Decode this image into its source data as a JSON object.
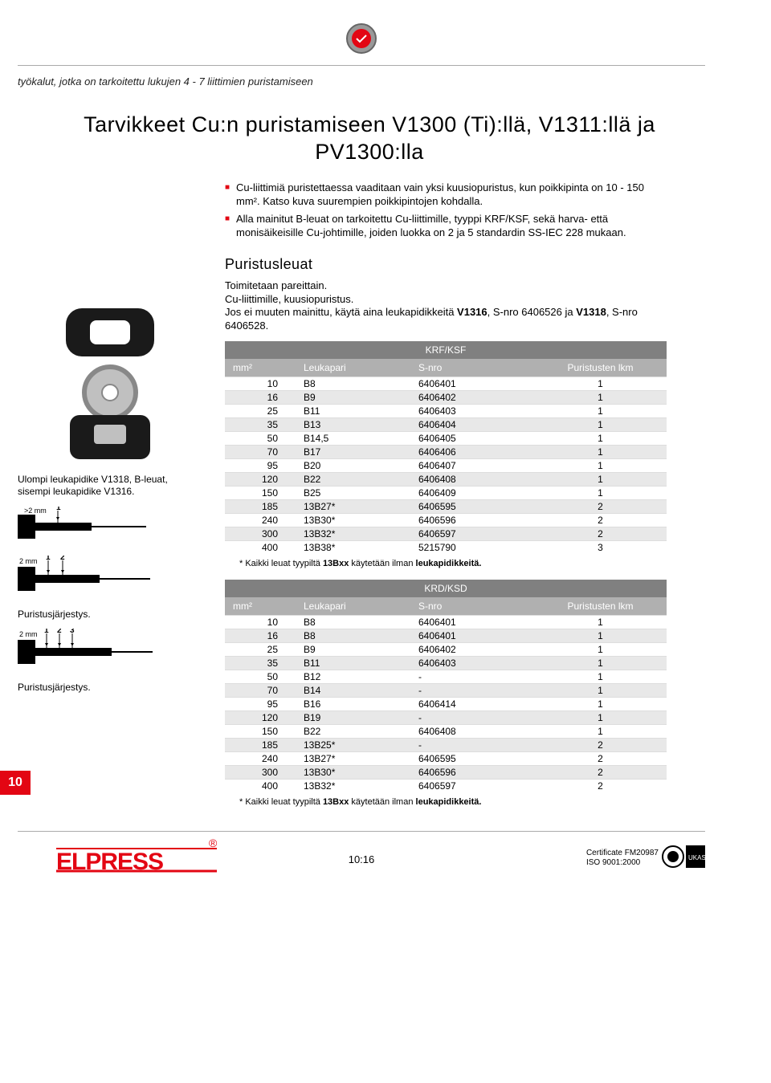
{
  "breadcrumb": "työkalut, jotka on tarkoitettu lukujen 4 - 7 liittimien puristamiseen",
  "title": "Tarvikkeet Cu:n puristamiseen V1300 (Ti):llä, V1311:llä ja PV1300:lla",
  "intro_items": [
    "Cu-liittimiä puristettaessa vaaditaan vain yksi kuusiopuristus, kun poikkipinta on 10 - 150 mm². Katso kuva suurempien poikkipintojen kohdalla.",
    "Alla mainitut B-leuat on tarkoitettu Cu-liittimille, tyyppi KRF/KSF, sekä harva- että monisäikeisille Cu-johtimille, joiden luokka on 2 ja 5 standardin SS-IEC 228 mukaan."
  ],
  "section_title": "Puristusleuat",
  "section_text": [
    "Toimitetaan pareittain.",
    "Cu-liittimille, kuusiopuristus.",
    "Jos ei muuten mainittu, käytä aina leukapidikkeitä V1316, S-nro 6406526 ja V1318, S-nro 6406528."
  ],
  "left_caption1": "Ulompi leukapidike V1318, B-leuat, sisempi leukapidike V1316.",
  "left_caption2": "Puristusjärjestys.",
  "left_caption3": "Puristusjärjestys.",
  "table1": {
    "band": "KRF/KSF",
    "headers": [
      "mm²",
      "Leukapari",
      "S-nro",
      "Puristusten lkm"
    ],
    "rows": [
      [
        "10",
        "B8",
        "6406401",
        "1"
      ],
      [
        "16",
        "B9",
        "6406402",
        "1"
      ],
      [
        "25",
        "B11",
        "6406403",
        "1"
      ],
      [
        "35",
        "B13",
        "6406404",
        "1"
      ],
      [
        "50",
        "B14,5",
        "6406405",
        "1"
      ],
      [
        "70",
        "B17",
        "6406406",
        "1"
      ],
      [
        "95",
        "B20",
        "6406407",
        "1"
      ],
      [
        "120",
        "B22",
        "6406408",
        "1"
      ],
      [
        "150",
        "B25",
        "6406409",
        "1"
      ],
      [
        "185",
        "13B27*",
        "6406595",
        "2"
      ],
      [
        "240",
        "13B30*",
        "6406596",
        "2"
      ],
      [
        "300",
        "13B32*",
        "6406597",
        "2"
      ],
      [
        "400",
        "13B38*",
        "5215790",
        "3"
      ]
    ],
    "footnote": "* Kaikki leuat tyypiltä 13Bxx käytetään ilman leukapidikkeitä."
  },
  "table2": {
    "band": "KRD/KSD",
    "headers": [
      "mm²",
      "Leukapari",
      "S-nro",
      "Puristusten lkm"
    ],
    "rows": [
      [
        "10",
        "B8",
        "6406401",
        "1"
      ],
      [
        "16",
        "B8",
        "6406401",
        "1"
      ],
      [
        "25",
        "B9",
        "6406402",
        "1"
      ],
      [
        "35",
        "B11",
        "6406403",
        "1"
      ],
      [
        "50",
        "B12",
        "-",
        "1"
      ],
      [
        "70",
        "B14",
        "-",
        "1"
      ],
      [
        "95",
        "B16",
        "6406414",
        "1"
      ],
      [
        "120",
        "B19",
        "-",
        "1"
      ],
      [
        "150",
        "B22",
        "6406408",
        "1"
      ],
      [
        "185",
        "13B25*",
        "-",
        "2"
      ],
      [
        "240",
        "13B27*",
        "6406595",
        "2"
      ],
      [
        "300",
        "13B30*",
        "6406596",
        "2"
      ],
      [
        "400",
        "13B32*",
        "6406597",
        "2"
      ]
    ],
    "footnote": "* Kaikki leuat tyypiltä 13Bxx käytetään ilman leukapidikkeitä."
  },
  "sidetab": "10",
  "pagenum": "10:16",
  "cert_line1": "Certificate FM20987",
  "cert_line2": "ISO 9001:2000",
  "elpress_text": "ELPRESS",
  "colors": {
    "accent_red": "#e30613",
    "table_band": "#808080",
    "table_header": "#b0b0b0",
    "row_alt": "#e8e8e8"
  }
}
